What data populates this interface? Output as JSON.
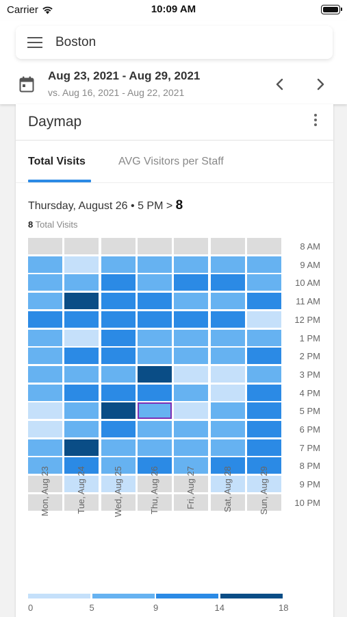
{
  "status_bar": {
    "carrier": "Carrier",
    "time": "10:09 AM"
  },
  "location": {
    "name": "Boston"
  },
  "date_range": {
    "current": "Aug 23, 2021 - Aug 29, 2021",
    "comparison": "vs. Aug 16, 2021 - Aug 22, 2021"
  },
  "card": {
    "title": "Daymap"
  },
  "tabs": [
    {
      "label": "Total Visits",
      "active": true
    },
    {
      "label": "AVG Visitors per Staff",
      "active": false
    }
  ],
  "selection": {
    "label": "Thursday, August 26 • 5 PM",
    "separator": ">",
    "value": "8",
    "summary_value": "8",
    "summary_label": "Total Visits"
  },
  "heatmap": {
    "days": [
      "Mon, Aug 23",
      "Tue, Aug 24",
      "Wed, Aug 25",
      "Thu, Aug 26",
      "Fri, Aug 27",
      "Sat, Aug 28",
      "Sun, Aug 29"
    ],
    "hours": [
      "8 AM",
      "9 AM",
      "10 AM",
      "11 AM",
      "12 PM",
      "1 PM",
      "2 PM",
      "3 PM",
      "4 PM",
      "5 PM",
      "6 PM",
      "7 PM",
      "8 PM",
      "9 PM",
      "10 PM"
    ],
    "levels": [
      [
        0,
        0,
        0,
        0,
        0,
        0,
        0
      ],
      [
        2,
        1,
        2,
        2,
        2,
        2,
        2
      ],
      [
        2,
        2,
        3,
        2,
        3,
        3,
        2
      ],
      [
        2,
        4,
        3,
        3,
        2,
        2,
        3
      ],
      [
        3,
        3,
        3,
        3,
        3,
        3,
        1
      ],
      [
        2,
        1,
        3,
        2,
        2,
        2,
        2
      ],
      [
        2,
        3,
        3,
        2,
        2,
        2,
        3
      ],
      [
        2,
        2,
        2,
        4,
        1,
        1,
        2
      ],
      [
        2,
        3,
        3,
        3,
        2,
        1,
        3
      ],
      [
        1,
        2,
        4,
        2,
        1,
        2,
        3
      ],
      [
        1,
        2,
        3,
        2,
        2,
        2,
        3
      ],
      [
        2,
        4,
        2,
        2,
        2,
        2,
        3
      ],
      [
        2,
        3,
        2,
        3,
        2,
        3,
        3
      ],
      [
        0,
        1,
        1,
        0,
        0,
        1,
        1
      ],
      [
        0,
        0,
        0,
        0,
        0,
        0,
        0
      ]
    ],
    "selected": {
      "day": 3,
      "hour": 9
    },
    "level_colors": [
      "#dcdcdc",
      "#c5e0fa",
      "#66b2f1",
      "#2b8ae5",
      "#0a4d86"
    ]
  },
  "legend": {
    "ticks": [
      "0",
      "5",
      "9",
      "14",
      "18"
    ],
    "colors": [
      "#c5e0fa",
      "#66b2f1",
      "#2b8ae5",
      "#0a4d86"
    ]
  }
}
